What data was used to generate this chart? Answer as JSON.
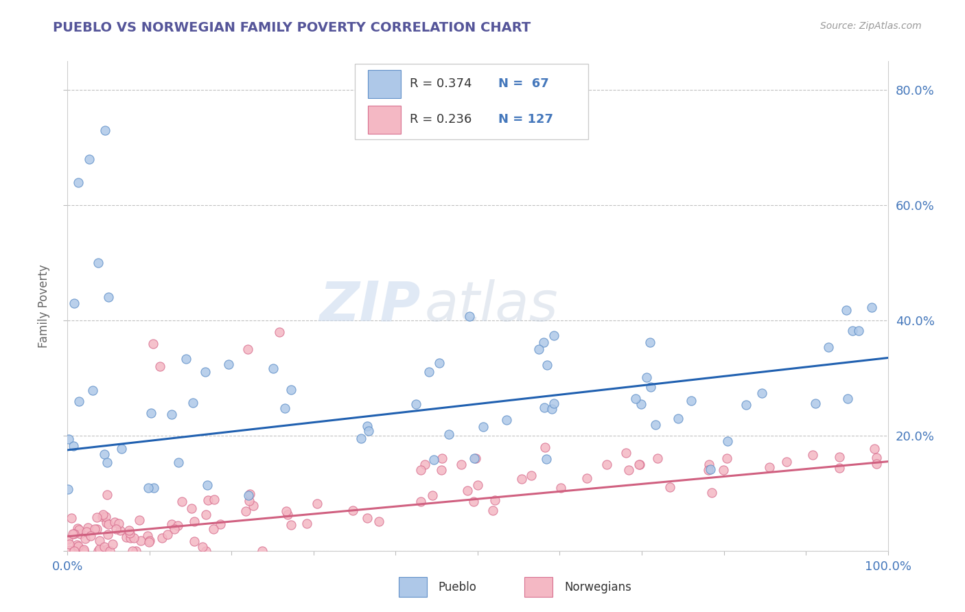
{
  "title": "PUEBLO VS NORWEGIAN FAMILY POVERTY CORRELATION CHART",
  "source": "Source: ZipAtlas.com",
  "ylabel": "Family Poverty",
  "xlim": [
    0.0,
    1.0
  ],
  "ylim": [
    0.0,
    0.85
  ],
  "pueblo_color": "#aec8e8",
  "norwegian_color": "#f4b8c4",
  "pueblo_edge_color": "#6090c8",
  "norwegian_edge_color": "#d87090",
  "pueblo_line_color": "#2060b0",
  "norwegian_line_color": "#d06080",
  "pueblo_R": 0.374,
  "pueblo_N": 67,
  "norwegian_R": 0.236,
  "norwegian_N": 127,
  "pueblo_intercept": 0.175,
  "pueblo_slope": 0.16,
  "norwegian_intercept": 0.025,
  "norwegian_slope": 0.13,
  "background_color": "#ffffff",
  "grid_color": "#bbbbbb",
  "title_color": "#555599",
  "axis_label_color": "#666666",
  "tick_label_color": "#4477bb"
}
